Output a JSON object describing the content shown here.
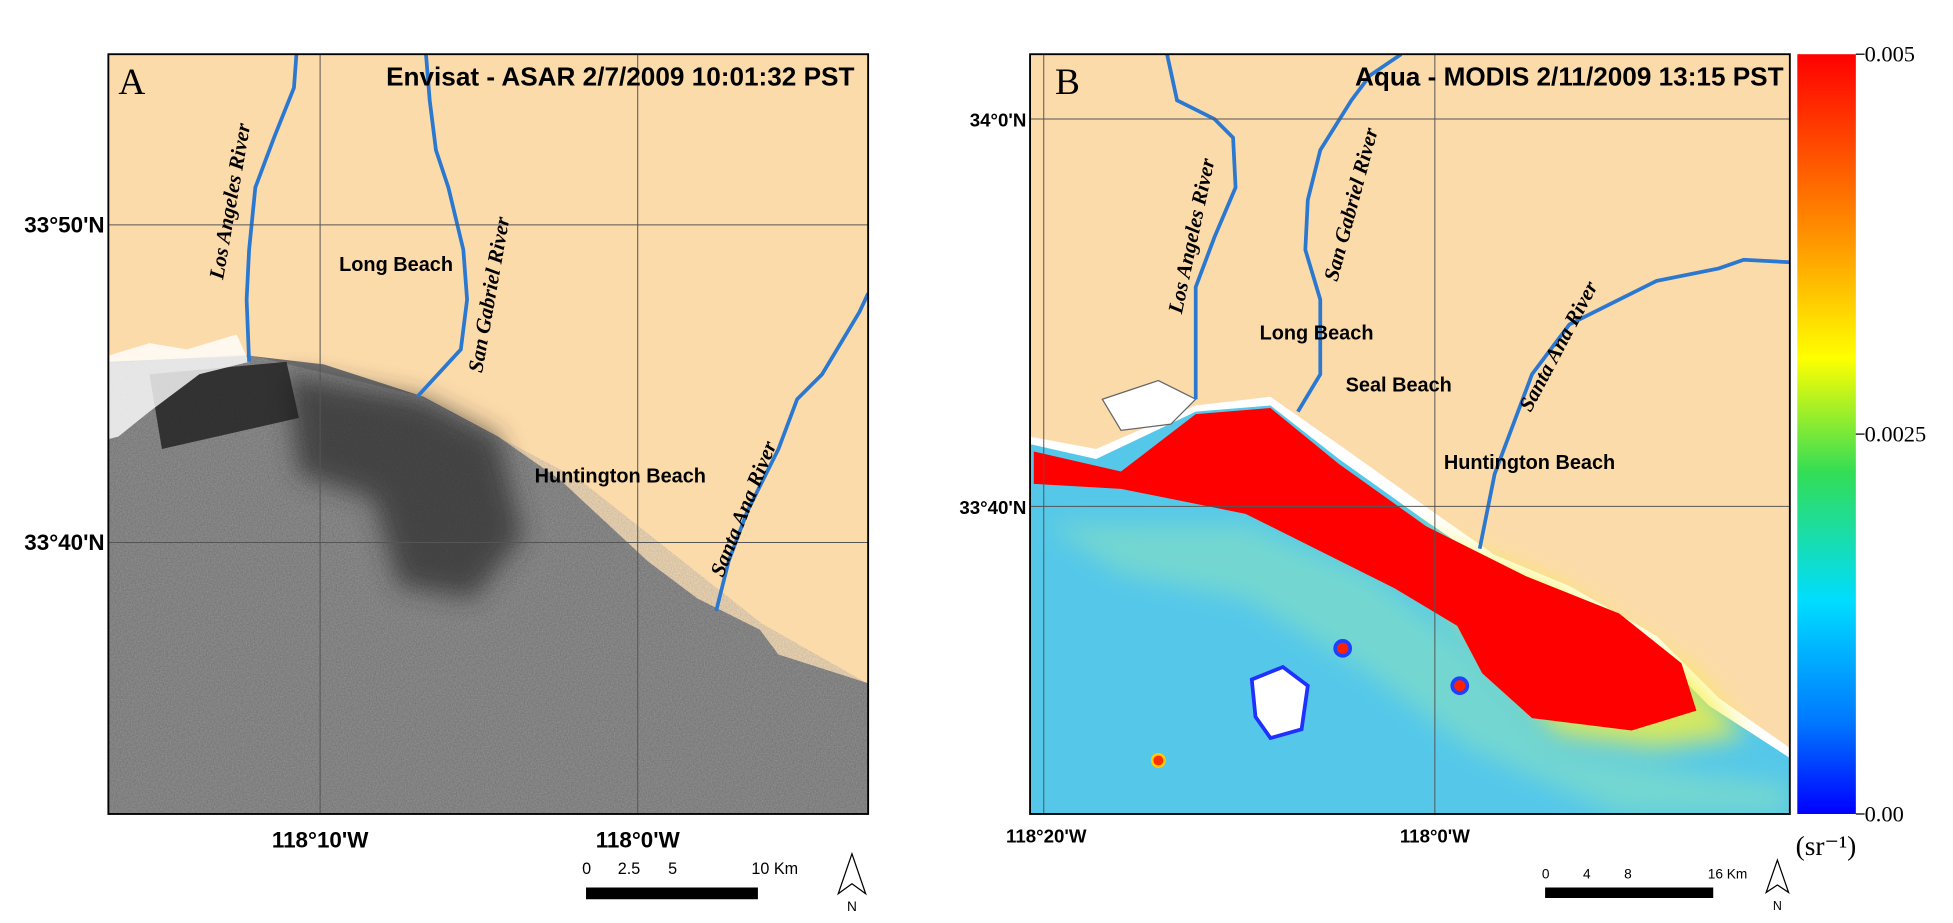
{
  "panels": [
    {
      "label": "A",
      "title": "Envisat - ASAR 2/7/2009 10:01:32 PST",
      "lat_labels": [
        "33°50'N",
        "33°40'N"
      ],
      "lon_labels": [
        "118°10'W",
        "118°0'W"
      ],
      "places": [
        "Long Beach",
        "Huntington Beach"
      ],
      "rivers": [
        "Los Angeles River",
        "San Gabriel River",
        "Santa Ana River"
      ],
      "scale_bar": [
        "0",
        "2.5",
        "5",
        "10 Km"
      ],
      "north": "N"
    },
    {
      "label": "B",
      "title": "Aqua - MODIS 2/11/2009 13:15 PST",
      "lat_labels": [
        "34°0'N",
        "33°40'N"
      ],
      "lon_labels": [
        "118°20'W",
        "118°0'W"
      ],
      "places": [
        "Long Beach",
        "Seal Beach",
        "Huntington Beach"
      ],
      "rivers": [
        "Los Angeles River",
        "San Gabriel River",
        "Santa Ana River"
      ],
      "scale_bar": [
        "0",
        "4",
        "8",
        "16 Km"
      ],
      "north": "N"
    }
  ],
  "colorbar": {
    "lim": [
      0,
      0.005
    ],
    "ticks": [
      0.005,
      0.0025,
      {
        "value": 0,
        "label": "0.00"
      }
    ],
    "unit": "(sr⁻¹)"
  }
}
